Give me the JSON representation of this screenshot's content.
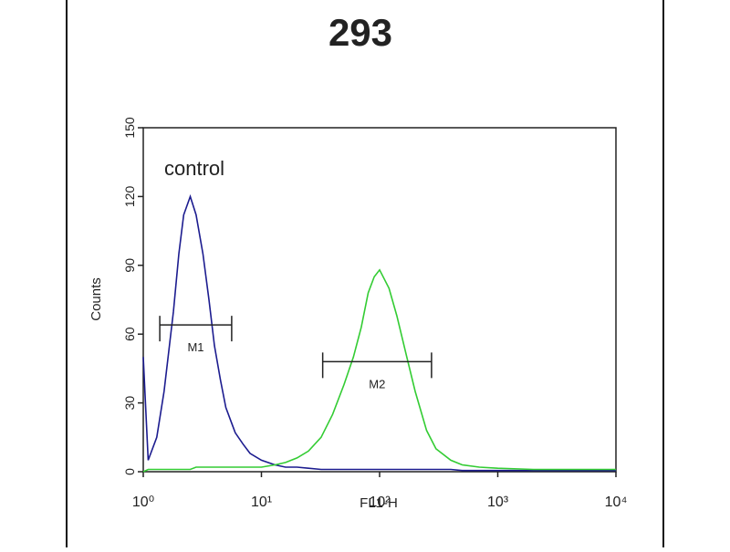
{
  "chart_data": {
    "type": "line",
    "title": "293",
    "xlabel": "FL1-H",
    "ylabel": "Counts",
    "log_x": true,
    "x": [
      1,
      1.1,
      1.3,
      1.5,
      1.8,
      2,
      2.2,
      2.5,
      2.8,
      3.2,
      3.6,
      4,
      4.5,
      5,
      6,
      7,
      8,
      10,
      13,
      16,
      20,
      25,
      32,
      40,
      50,
      60,
      70,
      80,
      90,
      100,
      120,
      140,
      170,
      200,
      250,
      300,
      400,
      500,
      700,
      1000,
      2000,
      5000,
      10000
    ],
    "series": [
      {
        "name": "control",
        "color": "#1c1c8f",
        "values": [
          50,
          5,
          15,
          35,
          70,
          95,
          112,
          120,
          112,
          95,
          75,
          55,
          40,
          28,
          17,
          12,
          8,
          5,
          3,
          2,
          2,
          1.5,
          1,
          1,
          1,
          1,
          1,
          1,
          1,
          1,
          1,
          1,
          1,
          1,
          1,
          1,
          1,
          0.5,
          0.5,
          0.5,
          0.5,
          0.5,
          0.5
        ]
      },
      {
        "color": "#33cc33",
        "values": [
          0,
          1,
          1,
          1,
          1,
          1,
          1,
          1,
          2,
          2,
          2,
          2,
          2,
          2,
          2,
          2,
          2,
          2,
          3,
          4,
          6,
          9,
          15,
          25,
          38,
          50,
          63,
          78,
          85,
          88,
          80,
          68,
          50,
          35,
          18,
          10,
          5,
          3,
          2,
          1.5,
          1,
          1,
          1
        ]
      }
    ],
    "markers": [
      {
        "label": "M1",
        "range": [
          1.38,
          5.6
        ],
        "y": 64
      },
      {
        "label": "M2",
        "range": [
          33,
          275
        ],
        "y": 48
      }
    ],
    "xlim": [
      1,
      10000
    ],
    "xticks": [
      {
        "value": 1,
        "label": "10⁰"
      },
      {
        "value": 10,
        "label": "10¹"
      },
      {
        "value": 100,
        "label": "10²"
      },
      {
        "value": 1000,
        "label": "10³"
      },
      {
        "value": 10000,
        "label": "10⁴"
      }
    ],
    "ylim": [
      0,
      150
    ],
    "yticks": [
      0,
      30,
      60,
      90,
      120,
      150
    ]
  }
}
